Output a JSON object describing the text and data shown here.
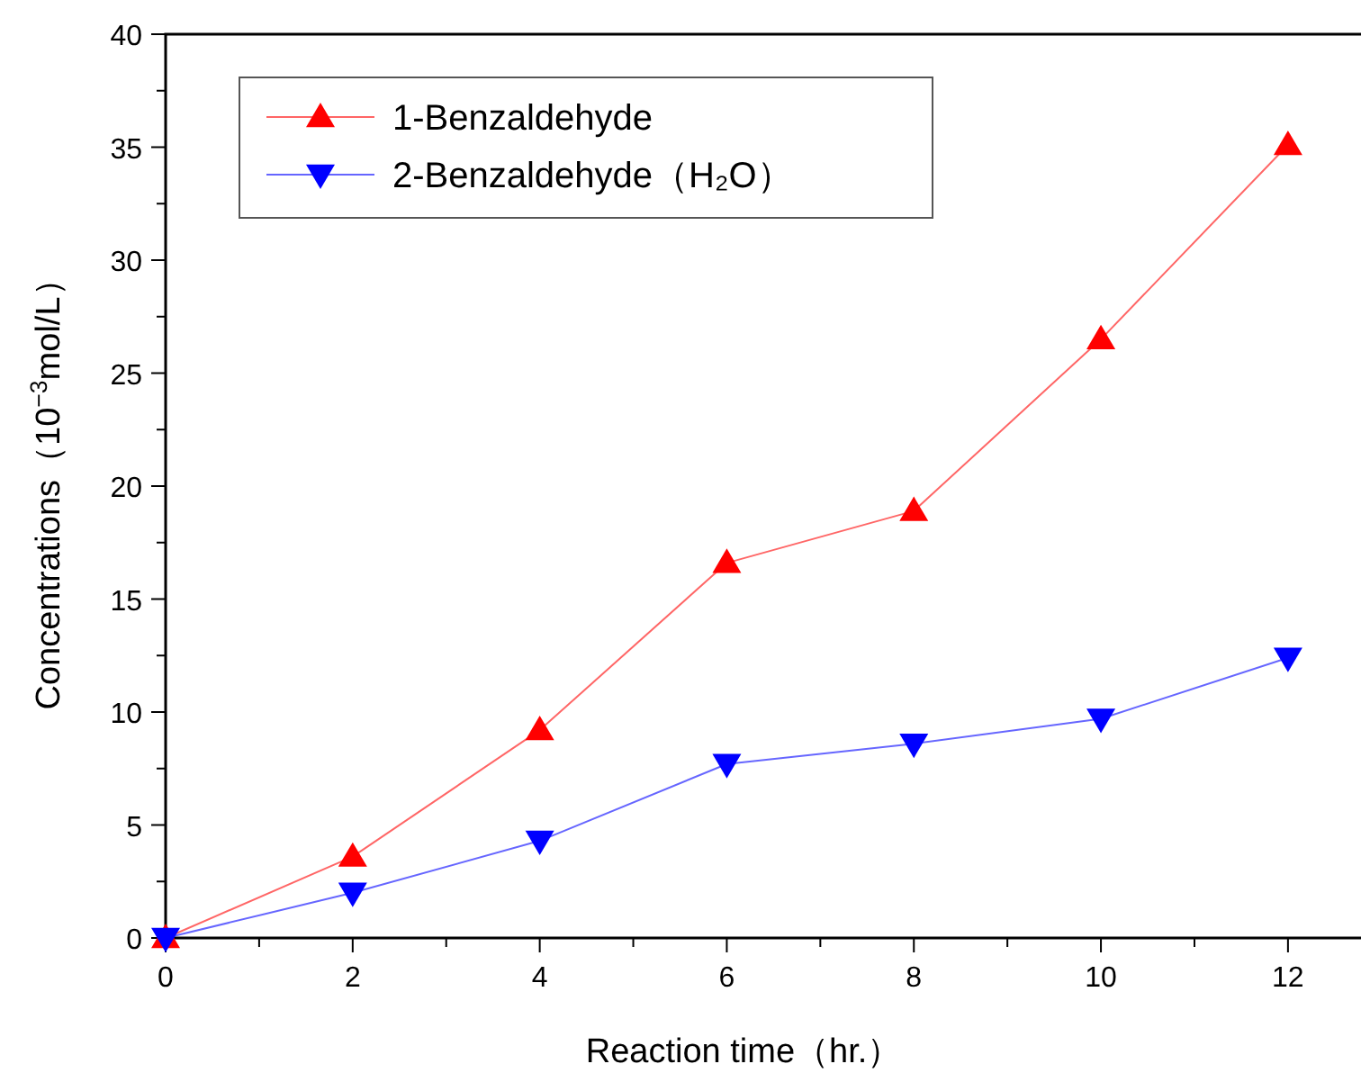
{
  "chart_data": {
    "type": "line",
    "xlabel": "Reaction time（hr.）",
    "ylabel": "Concentrations（10$^{−3}$mol/L）",
    "x": [
      0,
      2,
      4,
      6,
      8,
      10,
      12
    ],
    "series": [
      {
        "name": "1-Benzaldehyde",
        "color": "#ff0000",
        "marker": "triangle",
        "values": [
          0,
          3.6,
          9.2,
          16.6,
          18.9,
          26.5,
          35.1
        ]
      },
      {
        "name": "2-Benzaldehyde（H₂O）",
        "color": "#0000ff",
        "marker": "triangle_down",
        "values": [
          0,
          2.0,
          4.3,
          7.7,
          8.6,
          9.7,
          12.4
        ]
      }
    ],
    "xlim": [
      0,
      12.8
    ],
    "ylim": [
      0,
      40
    ],
    "xticks": [
      0,
      {
        "value": 1,
        "label": null
      },
      2,
      {
        "value": 3,
        "label": null
      },
      4,
      {
        "value": 5,
        "label": null
      },
      6,
      {
        "value": 7,
        "label": null
      },
      8,
      {
        "value": 9,
        "label": null
      },
      10,
      {
        "value": 11,
        "label": null
      },
      12
    ],
    "yticks": [
      0,
      {
        "value": 2.5,
        "label": null
      },
      5,
      {
        "value": 7.5,
        "label": null
      },
      10,
      {
        "value": 12.5,
        "label": null
      },
      15,
      {
        "value": 17.5,
        "label": null
      },
      20,
      {
        "value": 22.5,
        "label": null
      },
      25,
      {
        "value": 27.5,
        "label": null
      },
      30,
      {
        "value": 32.5,
        "label": null
      },
      35,
      {
        "value": 37.5,
        "label": null
      },
      40
    ],
    "grid": false,
    "legend": "top left",
    "line_style": "solid"
  }
}
